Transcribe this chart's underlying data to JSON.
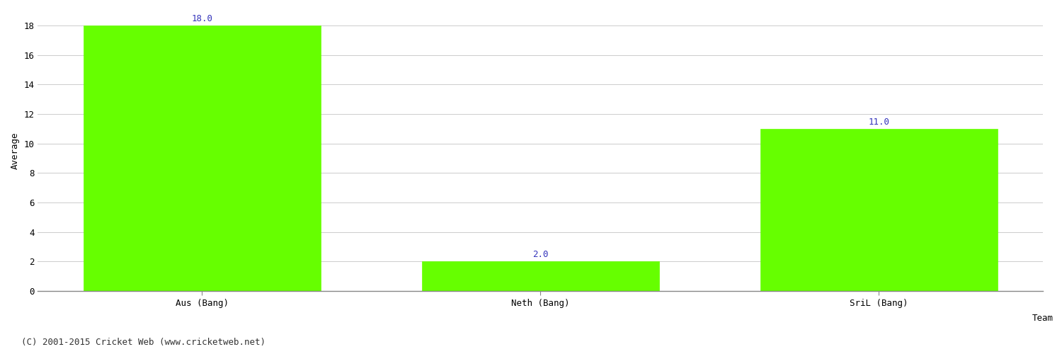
{
  "categories": [
    "Aus (Bang)",
    "Neth (Bang)",
    "SriL (Bang)"
  ],
  "values": [
    18.0,
    2.0,
    11.0
  ],
  "bar_color": "#66ff00",
  "bar_edge_color": "#66ff00",
  "xlabel": "Team",
  "ylabel": "Average",
  "ylim": [
    0,
    19
  ],
  "yticks": [
    0,
    2,
    4,
    6,
    8,
    10,
    12,
    14,
    16,
    18
  ],
  "label_color": "#3333bb",
  "label_fontsize": 9,
  "tick_fontsize": 9,
  "xlabel_fontsize": 9,
  "ylabel_fontsize": 9,
  "background_color": "#ffffff",
  "grid_color": "#cccccc",
  "footer_text": "(C) 2001-2015 Cricket Web (www.cricketweb.net)",
  "footer_fontsize": 9,
  "footer_color": "#333333"
}
